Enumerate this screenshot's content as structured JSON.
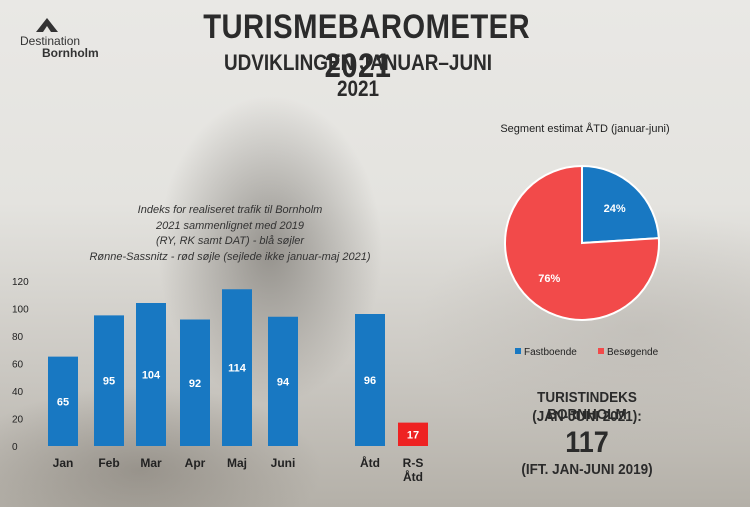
{
  "logo": {
    "line1": "Destination",
    "line2": "Bornholm"
  },
  "title": "TURISMEBAROMETER 2021",
  "subtitle": "UDVIKLINGEN JANUAR–JUNI 2021",
  "bar_note": [
    "Indeks for realiseret trafik til Bornholm",
    "2021 sammenlignet med 2019",
    "(RY, RK samt DAT) - blå søjler",
    "Rønne-Sassnitz - rød søjle (sejlede ikke januar-maj 2021)"
  ],
  "tourism_index": {
    "label1": "TURISTINDEKS BORNHOLM",
    "label2": "(JAN-JUNI 2021):",
    "value": "117",
    "label3": "(IFT. JAN-JUNI 2019)"
  },
  "colors": {
    "blue": "#1878c2",
    "red": "#ee2222",
    "pie_red": "#f24a4a"
  },
  "chart_data": [
    {
      "type": "bar",
      "categories": [
        "Jan",
        "Feb",
        "Mar",
        "Apr",
        "Maj",
        "Juni",
        "Åtd",
        "R-S Åtd"
      ],
      "category_lines": [
        [
          "Jan"
        ],
        [
          "Feb"
        ],
        [
          "Mar"
        ],
        [
          "Apr"
        ],
        [
          "Maj"
        ],
        [
          "Juni"
        ],
        [
          "Åtd"
        ],
        [
          "R-S",
          "Åtd"
        ]
      ],
      "values": [
        65,
        95,
        104,
        92,
        114,
        94,
        96,
        17
      ],
      "bar_colors": [
        "blue",
        "blue",
        "blue",
        "blue",
        "blue",
        "blue",
        "blue",
        "red"
      ],
      "ylim": [
        0,
        120
      ],
      "yticks": [
        0,
        20,
        40,
        60,
        80,
        100,
        120
      ],
      "grid": false,
      "data_labels": true
    },
    {
      "type": "pie",
      "title": "Segment estimat ÅTD (januar-juni)",
      "labels": [
        "Fastboende",
        "Besøgende"
      ],
      "values": [
        24,
        76
      ],
      "value_labels": [
        "24%",
        "76%"
      ],
      "colors": [
        "#1878c2",
        "#f24a4a"
      ],
      "legend": "bottom"
    }
  ]
}
